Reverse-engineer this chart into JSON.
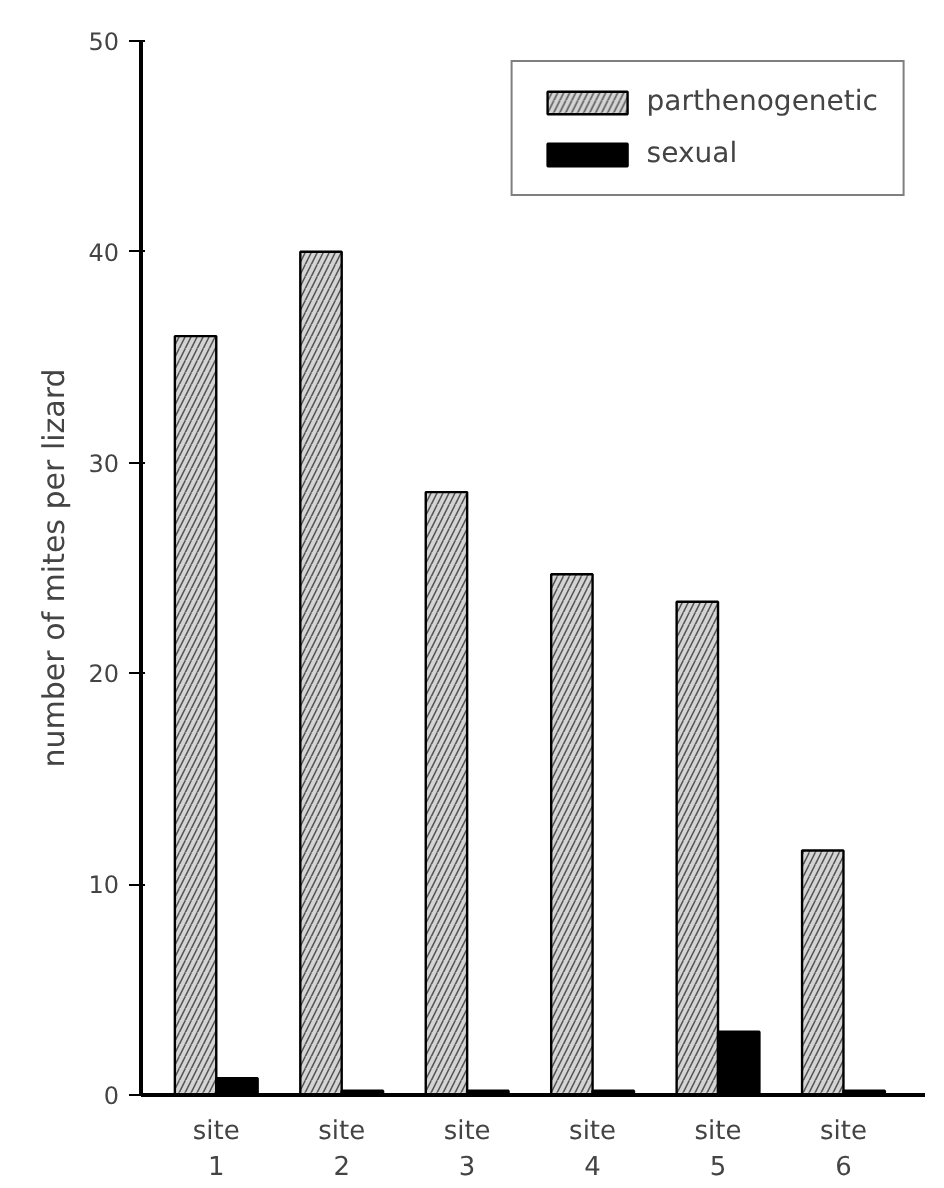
{
  "chart_data": {
    "type": "bar",
    "ylabel": "number of mites per lizard",
    "categories": [
      "site\n1",
      "site\n2",
      "site\n3",
      "site\n4",
      "site\n5",
      "site\n6"
    ],
    "series": [
      {
        "name": "parthenogenetic",
        "color": "#d4d4d4",
        "values": [
          36,
          40,
          28.6,
          24.7,
          23.4,
          11.6
        ]
      },
      {
        "name": "sexual",
        "color": "#000000",
        "values": [
          0.8,
          0.2,
          0.2,
          0.2,
          3.0,
          0.2
        ]
      }
    ],
    "ylim": [
      0,
      50
    ],
    "yticks": [
      0,
      10,
      20,
      30,
      40,
      50
    ],
    "grid": false,
    "legend": "top right"
  }
}
